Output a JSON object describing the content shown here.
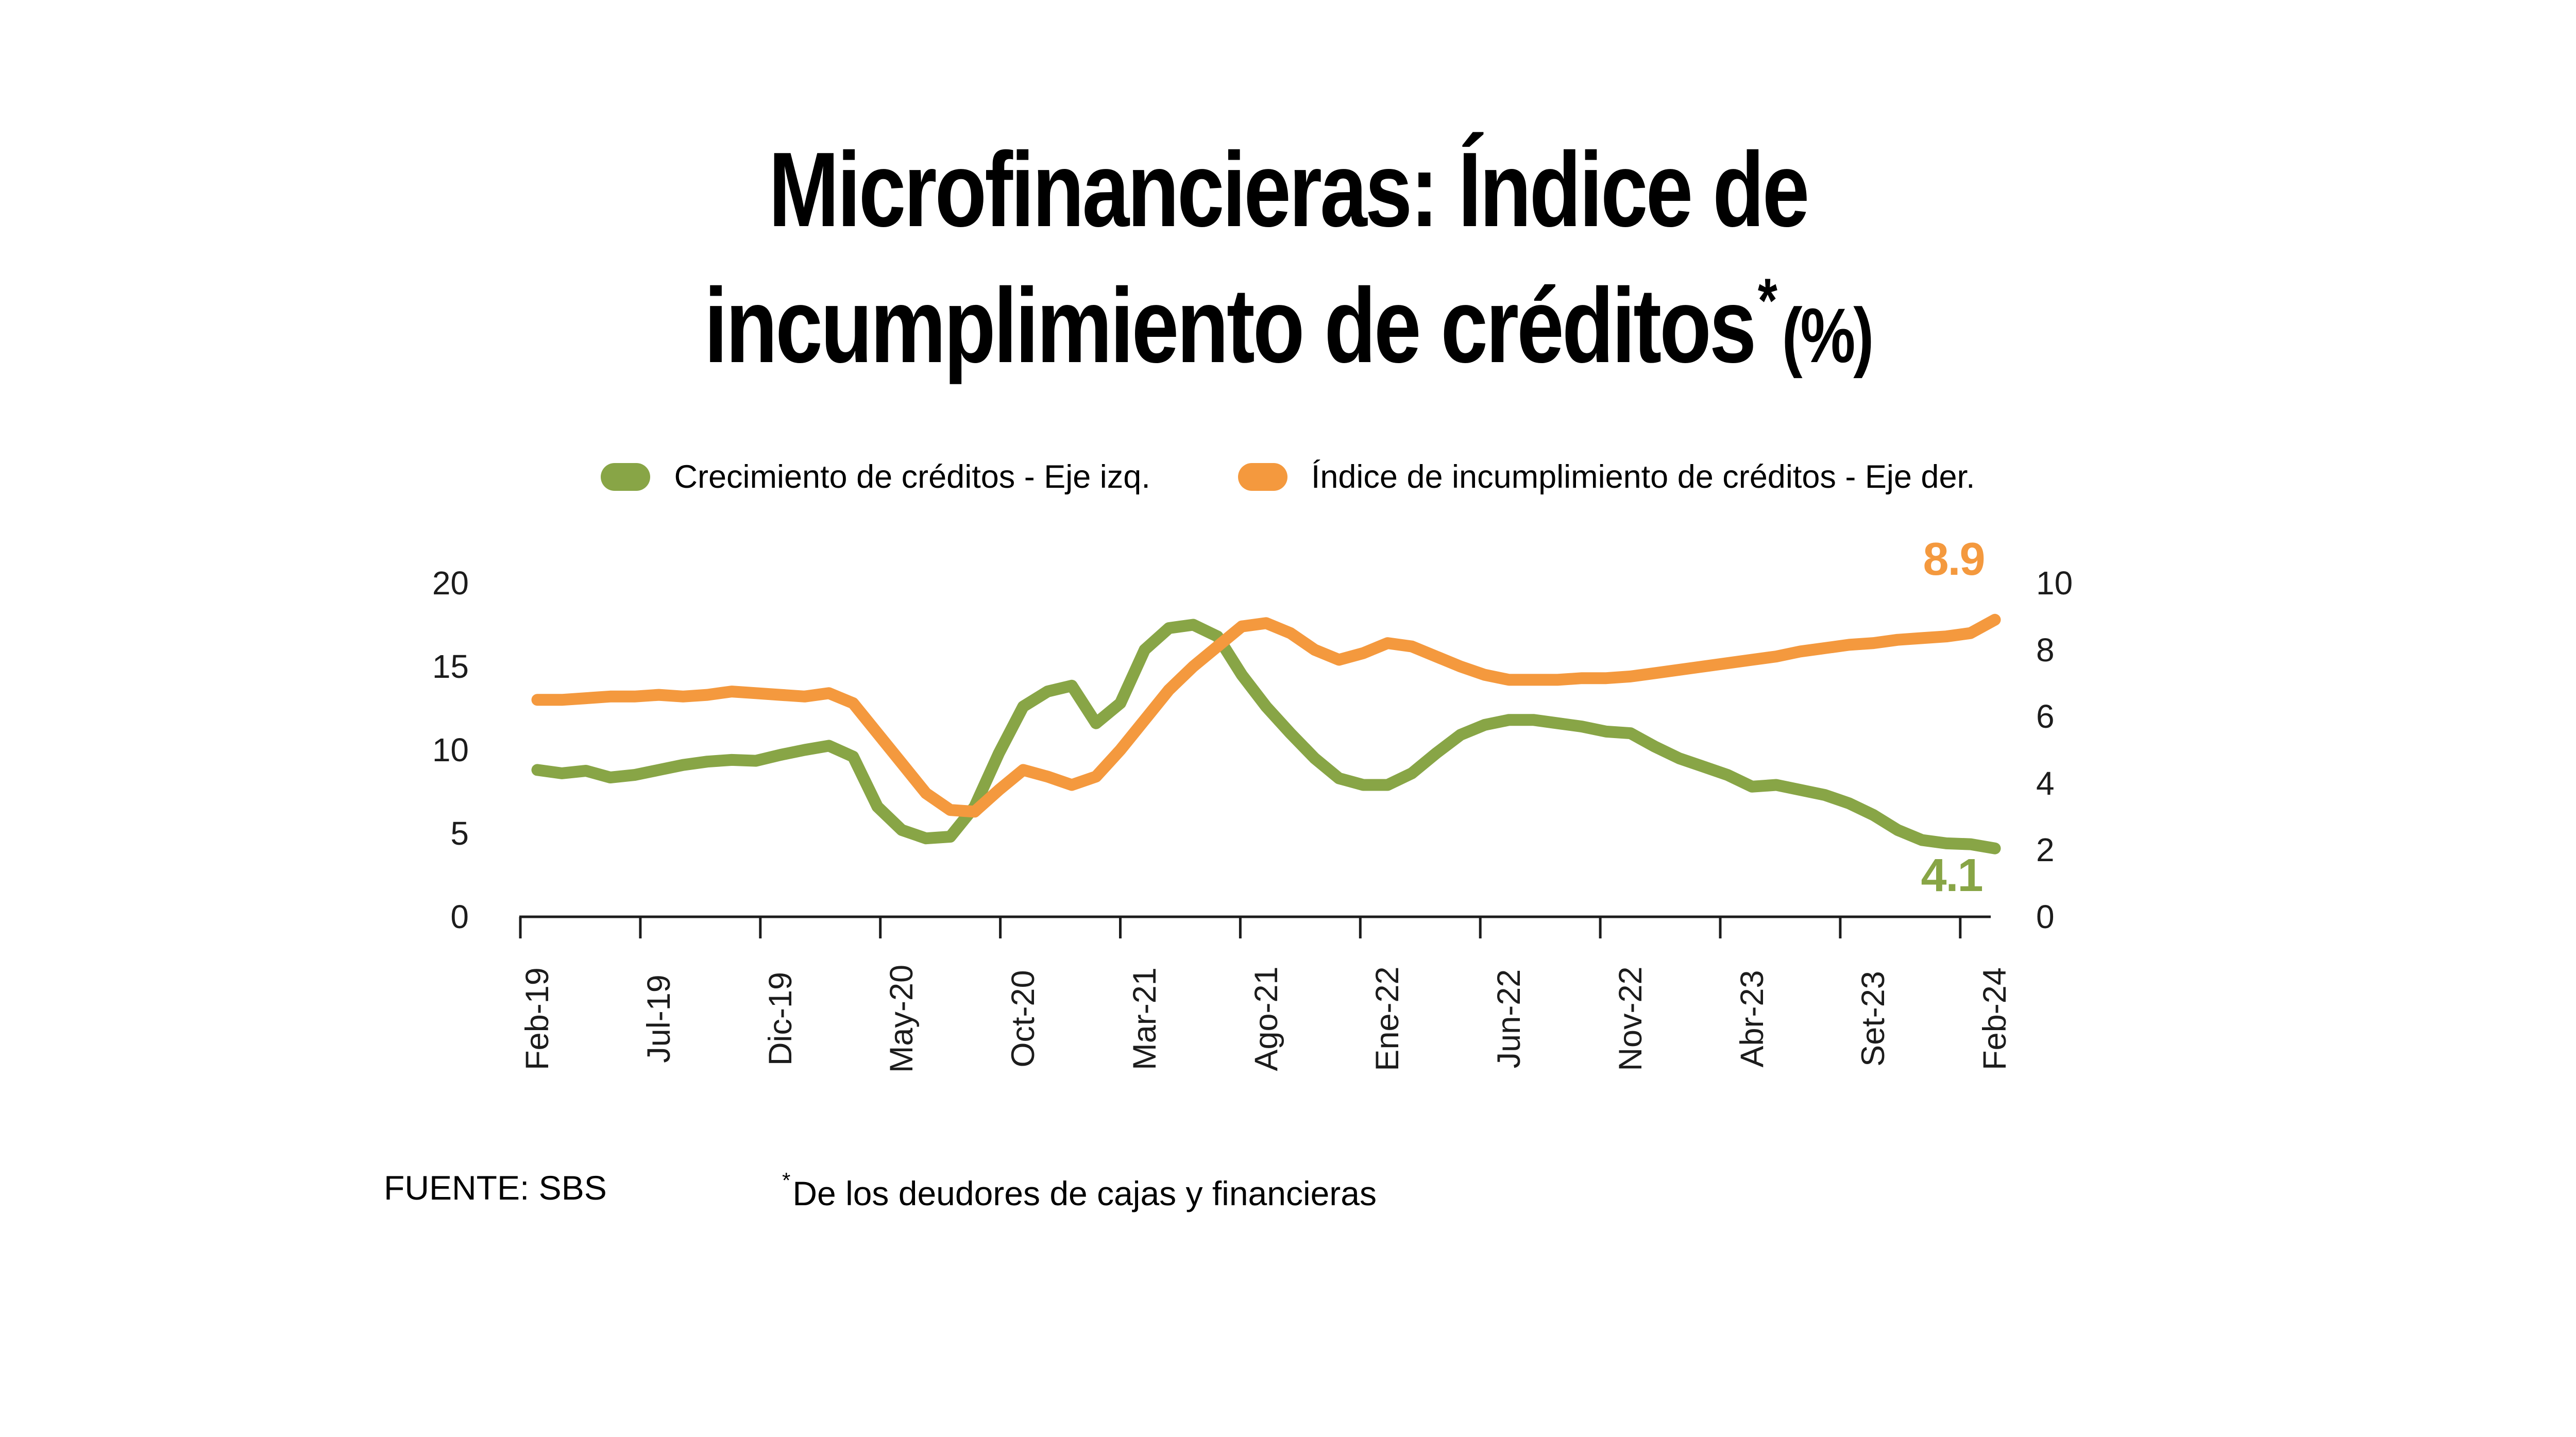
{
  "title": {
    "line1": "Microfinancieras: Índice de",
    "line2_main": "incumplimiento de créditos",
    "line2_sup": "*",
    "line2_pct": "(%)"
  },
  "legend": {
    "items": [
      {
        "label": "Crecimiento de créditos - Eje izq.",
        "color": "#88A546"
      },
      {
        "label": "Índice de incumplimiento de créditos - Eje der.",
        "color": "#F4993E"
      }
    ]
  },
  "annotations": {
    "orange_end": {
      "text": "8.9",
      "color": "#F4993E"
    },
    "green_end": {
      "text": "4.1",
      "color": "#88A546"
    }
  },
  "footer": {
    "source": "FUENTE: SBS",
    "note_sup": "*",
    "note": "De los deudores de cajas y financieras"
  },
  "chart_data": {
    "type": "line",
    "title": "Microfinancieras: Índice de incumplimiento de créditos* (%)",
    "grid": false,
    "legend_position": "top",
    "x_tick_labels": [
      "Feb-19",
      "Jul-19",
      "Dic-19",
      "May-20",
      "Oct-20",
      "Mar-21",
      "Ago-21",
      "Ene-22",
      "Jun-22",
      "Nov-22",
      "Abr-23",
      "Set-23",
      "Feb-24"
    ],
    "months_between_ticks": 5,
    "left_axis": {
      "ticks": [
        20,
        15,
        10,
        5,
        0
      ],
      "range": [
        0,
        20
      ]
    },
    "right_axis": {
      "ticks": [
        10,
        8,
        6,
        4,
        2,
        0
      ],
      "range": [
        0,
        10
      ]
    },
    "end_labels": {
      "left_series": 4.1,
      "right_series": 8.9
    },
    "series": [
      {
        "name": "Crecimiento de créditos - Eje izq.",
        "axis": "left",
        "color": "#88A546",
        "values": [
          8.8,
          8.6,
          8.75,
          8.35,
          8.5,
          8.8,
          9.1,
          9.3,
          9.4,
          9.35,
          9.7,
          10.0,
          10.25,
          9.6,
          6.6,
          5.2,
          4.7,
          4.8,
          6.6,
          9.8,
          12.6,
          13.5,
          13.85,
          11.6,
          12.8,
          16.0,
          17.3,
          17.5,
          16.8,
          14.5,
          12.6,
          11.0,
          9.5,
          8.3,
          7.9,
          7.9,
          8.6,
          9.8,
          10.9,
          11.5,
          11.8,
          11.8,
          11.6,
          11.4,
          11.1,
          11.0,
          10.2,
          9.5,
          9.0,
          8.5,
          7.8,
          7.9,
          7.6,
          7.3,
          6.8,
          6.1,
          5.2,
          4.6,
          4.4,
          4.35,
          4.1
        ]
      },
      {
        "name": "Índice de incumplimiento de créditos - Eje der.",
        "axis": "right",
        "color": "#F4993E",
        "values": [
          6.5,
          6.5,
          6.55,
          6.6,
          6.6,
          6.65,
          6.6,
          6.65,
          6.75,
          6.7,
          6.65,
          6.6,
          6.7,
          6.4,
          5.5,
          4.6,
          3.7,
          3.2,
          3.15,
          3.8,
          4.4,
          4.2,
          3.95,
          4.2,
          5.0,
          5.9,
          6.8,
          7.5,
          8.1,
          8.7,
          8.8,
          8.5,
          8.0,
          7.7,
          7.9,
          8.2,
          8.1,
          7.8,
          7.5,
          7.25,
          7.1,
          7.1,
          7.1,
          7.15,
          7.15,
          7.2,
          7.3,
          7.4,
          7.5,
          7.6,
          7.7,
          7.8,
          7.95,
          8.05,
          8.15,
          8.2,
          8.3,
          8.35,
          8.4,
          8.5,
          8.9
        ]
      }
    ]
  }
}
